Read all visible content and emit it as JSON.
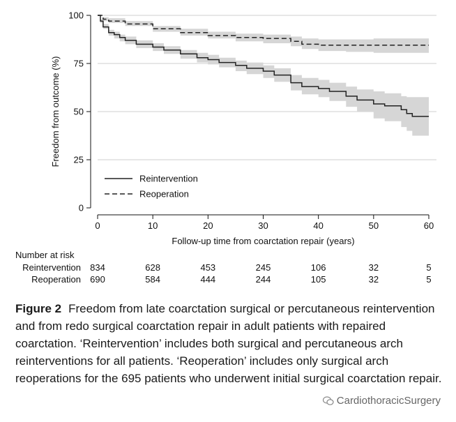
{
  "chart_data": {
    "type": "line",
    "title": "",
    "xlabel": "Follow-up time from coarctation repair (years)",
    "ylabel": "Freedom from outcome (%)",
    "xlim": [
      0,
      60
    ],
    "ylim": [
      0,
      100
    ],
    "x_ticks": [
      "0",
      "10",
      "20",
      "30",
      "40",
      "50",
      "60"
    ],
    "y_ticks": [
      "0",
      "25",
      "50",
      "75",
      "100"
    ],
    "grid": "horizontal",
    "legend_position": "lower-left",
    "series": [
      {
        "name": "Reintervention",
        "style": "solid",
        "color": "#222222",
        "x": [
          0,
          0.5,
          1,
          2,
          3,
          4,
          5,
          7,
          10,
          12,
          15,
          18,
          20,
          22,
          25,
          27,
          30,
          32,
          35,
          37,
          40,
          42,
          45,
          47,
          50,
          52,
          55,
          56,
          57,
          60
        ],
        "y": [
          100,
          97,
          94,
          91,
          90,
          88.5,
          87,
          85,
          83.5,
          82,
          80,
          78,
          77,
          75.5,
          74,
          72.5,
          71,
          69,
          65,
          63,
          62,
          60.5,
          58,
          56,
          54,
          53,
          51,
          49,
          47.5,
          47.5
        ],
        "ci_lower": [
          100,
          96,
          93,
          89.5,
          88,
          86.5,
          85,
          83,
          81.5,
          80,
          77.5,
          75.5,
          74.5,
          73,
          71,
          69.5,
          67.5,
          65.5,
          61,
          59,
          57.5,
          55.5,
          52.5,
          50,
          46.5,
          45,
          42,
          40,
          37.5,
          37.5
        ],
        "ci_upper": [
          100,
          98,
          95.5,
          92.5,
          91.5,
          90,
          89,
          87,
          85.5,
          84,
          82,
          80.5,
          79.5,
          78,
          76.5,
          75.5,
          74,
          72.5,
          69,
          67.5,
          66.5,
          65,
          63,
          61.5,
          60.5,
          59.5,
          58,
          57.5,
          57.5,
          57.5
        ]
      },
      {
        "name": "Reoperation",
        "style": "dashed",
        "color": "#222222",
        "x": [
          0,
          1,
          2,
          5,
          10,
          15,
          20,
          25,
          30,
          35,
          37,
          40,
          45,
          50,
          55,
          60
        ],
        "y": [
          100,
          98,
          97,
          95.5,
          93,
          91,
          89.5,
          88.5,
          88,
          86.5,
          85,
          84.5,
          84.5,
          84.5,
          84.5,
          84.5
        ],
        "ci_lower": [
          100,
          97,
          96,
          94.5,
          91.5,
          89.5,
          88,
          86.5,
          85.5,
          84,
          82.5,
          81.5,
          81,
          80.5,
          80.5,
          80.5
        ],
        "ci_upper": [
          100,
          99,
          98.5,
          97,
          94.5,
          93,
          91.5,
          90.5,
          90,
          89,
          88,
          87.5,
          87.5,
          88,
          88,
          88
        ]
      }
    ],
    "ci_color": "#d6d6d6"
  },
  "risk_table": {
    "title": "Number at risk",
    "rows": [
      {
        "label": "Reintervention",
        "values": [
          "834",
          "628",
          "453",
          "245",
          "106",
          "32",
          "5"
        ]
      },
      {
        "label": "Reoperation",
        "values": [
          "690",
          "584",
          "444",
          "244",
          "105",
          "32",
          "5"
        ]
      }
    ]
  },
  "caption": {
    "figure_label": "Figure 2",
    "text": "Freedom from late coarctation surgical or percutaneous reintervention and from redo surgical coarctation repair in adult patients with repaired coarctation. ‘Reintervention’ includes both surgical and percutaneous arch reinterventions for all patients. ‘Reoperation’ includes only surgical arch reoperations for the 695 patients who underwent initial surgical coarctation repair."
  },
  "watermark": {
    "text": "CardiothoracicSurgery",
    "icon": "wechat-icon"
  }
}
